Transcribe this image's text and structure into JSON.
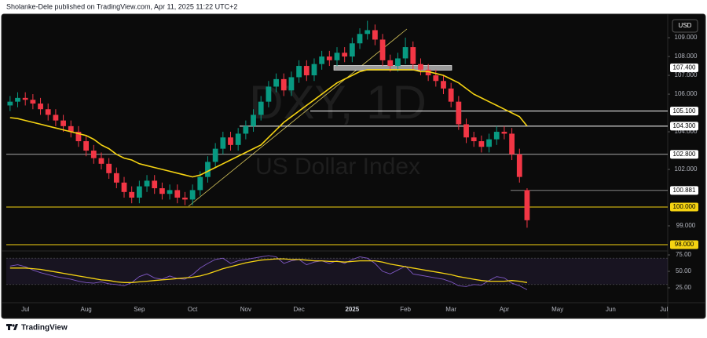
{
  "header": {
    "text": "Sholanke-Dele published on TradingView.com, Apr 11, 2025 11:22 UTC+2"
  },
  "chart_data": [
    {
      "type": "candlestick",
      "watermark_title": "DXY, 1D",
      "watermark_subtitle": "US Dollar Index",
      "currency": "USD",
      "categories": [
        null,
        null,
        "Jul",
        null,
        null,
        null,
        null,
        null,
        null,
        null,
        "Aug",
        null,
        null,
        null,
        null,
        null,
        null,
        "Sep",
        null,
        null,
        null,
        null,
        null,
        null,
        "Oct",
        null,
        null,
        null,
        null,
        null,
        null,
        "Nov",
        null,
        null,
        null,
        null,
        null,
        null,
        "Dec",
        null,
        null,
        null,
        null,
        null,
        null,
        "2025",
        null,
        null,
        null,
        null,
        null,
        null,
        "Feb",
        null,
        null,
        null,
        null,
        null,
        "Mar",
        null,
        null,
        null,
        null,
        null,
        null,
        "Apr",
        null,
        null,
        null,
        null,
        null,
        null,
        "May",
        null,
        null,
        null,
        null,
        null,
        null,
        "Jun",
        null,
        null,
        null,
        null,
        null,
        null,
        "Jul"
      ],
      "open": [
        105.4,
        105.6,
        105.8,
        105.7,
        105.5,
        105.2,
        104.9,
        104.6,
        104.3,
        104.0,
        103.5,
        103.0,
        102.6,
        102.3,
        101.8,
        101.3,
        100.8,
        100.5,
        101.1,
        101.4,
        101.0,
        100.7,
        100.9,
        100.5,
        100.4,
        100.9,
        101.6,
        102.4,
        103.1,
        103.7,
        103.3,
        103.9,
        104.3,
        104.9,
        105.6,
        106.4,
        106.8,
        106.2,
        106.9,
        107.5,
        107.0,
        107.6,
        108.0,
        107.8,
        108.2,
        108.0,
        108.7,
        109.2,
        109.4,
        108.9,
        107.8,
        107.5,
        107.9,
        108.5,
        107.6,
        107.3,
        107.0,
        106.7,
        106.3,
        105.6,
        104.4,
        103.7,
        103.5,
        103.2,
        103.6,
        104.0,
        103.9,
        102.8,
        100.9,
        null,
        null,
        null,
        null,
        null,
        null,
        null,
        null,
        null,
        null,
        null,
        null,
        null,
        null,
        null,
        null,
        null,
        null
      ],
      "high": [
        105.9,
        106.1,
        106.1,
        106.0,
        105.8,
        105.5,
        105.2,
        104.9,
        104.6,
        104.3,
        103.8,
        103.3,
        102.9,
        102.6,
        102.1,
        101.6,
        101.1,
        101.4,
        101.7,
        101.7,
        101.3,
        101.2,
        101.2,
        100.8,
        101.2,
        101.9,
        102.7,
        103.4,
        104.0,
        104.0,
        104.2,
        104.6,
        105.2,
        105.9,
        106.7,
        107.1,
        107.1,
        107.2,
        107.8,
        107.8,
        107.9,
        108.3,
        108.3,
        108.5,
        108.5,
        109.0,
        109.5,
        109.9,
        109.7,
        109.2,
        108.1,
        108.2,
        109.0,
        108.8,
        107.9,
        107.6,
        107.3,
        107.0,
        106.6,
        105.9,
        104.7,
        104.0,
        103.8,
        103.9,
        104.3,
        104.3,
        104.2,
        103.1,
        101.0,
        null,
        null,
        null,
        null,
        null,
        null,
        null,
        null,
        null,
        null,
        null,
        null,
        null,
        null,
        null,
        null,
        null,
        null
      ],
      "low": [
        105.1,
        105.3,
        105.4,
        105.2,
        104.9,
        104.6,
        104.3,
        104.0,
        103.7,
        103.2,
        102.7,
        102.3,
        102.0,
        101.5,
        101.0,
        100.5,
        100.2,
        100.2,
        100.8,
        100.7,
        100.4,
        100.4,
        100.2,
        100.1,
        100.1,
        100.6,
        101.3,
        102.1,
        102.8,
        103.0,
        103.0,
        103.6,
        104.0,
        104.6,
        105.3,
        106.1,
        105.9,
        105.9,
        106.6,
        106.7,
        106.7,
        107.3,
        107.5,
        107.5,
        107.7,
        107.7,
        108.4,
        108.9,
        108.6,
        107.5,
        107.2,
        107.2,
        107.6,
        107.3,
        107.0,
        106.7,
        106.4,
        106.0,
        105.3,
        104.1,
        103.4,
        103.2,
        102.9,
        102.9,
        103.3,
        103.6,
        102.5,
        101.3,
        98.9,
        null,
        null,
        null,
        null,
        null,
        null,
        null,
        null,
        null,
        null,
        null,
        null,
        null,
        null,
        null,
        null,
        null,
        null
      ],
      "close": [
        105.6,
        105.8,
        105.7,
        105.5,
        105.2,
        104.9,
        104.6,
        104.3,
        104.0,
        103.5,
        103.0,
        102.6,
        102.3,
        101.8,
        101.3,
        100.8,
        100.5,
        101.1,
        101.4,
        101.0,
        100.7,
        100.9,
        100.5,
        100.4,
        100.9,
        101.6,
        102.4,
        103.1,
        103.7,
        103.3,
        103.9,
        104.3,
        104.9,
        105.6,
        106.4,
        106.8,
        106.2,
        106.9,
        107.5,
        107.0,
        107.6,
        108.0,
        107.8,
        108.2,
        108.0,
        108.7,
        109.2,
        109.4,
        108.9,
        107.8,
        107.5,
        107.9,
        108.5,
        107.6,
        107.3,
        107.0,
        106.7,
        106.3,
        105.6,
        104.4,
        103.7,
        103.5,
        103.2,
        103.6,
        104.0,
        103.9,
        102.8,
        101.6,
        99.3,
        null,
        null,
        null,
        null,
        null,
        null,
        null,
        null,
        null,
        null,
        null,
        null,
        null,
        null,
        null,
        null,
        null,
        null
      ],
      "up_color": "#089981",
      "down_color": "#f23645",
      "ma": {
        "color": "#f5d312",
        "values": [
          104.75,
          104.7,
          104.6,
          104.5,
          104.4,
          104.3,
          104.2,
          104.1,
          104.0,
          103.9,
          103.8,
          103.6,
          103.3,
          103.1,
          102.8,
          102.6,
          102.5,
          102.3,
          102.2,
          102.1,
          102.0,
          101.9,
          101.8,
          101.7,
          101.6,
          101.7,
          101.9,
          102.1,
          102.3,
          102.5,
          102.7,
          102.9,
          103.1,
          103.3,
          103.7,
          104.1,
          104.5,
          104.8,
          105.1,
          105.4,
          105.7,
          106.0,
          106.3,
          106.6,
          106.8,
          107.0,
          107.2,
          107.3,
          107.3,
          107.3,
          107.3,
          107.3,
          107.3,
          107.3,
          107.2,
          107.2,
          107.1,
          107.0,
          106.8,
          106.6,
          106.3,
          106.0,
          105.8,
          105.6,
          105.4,
          105.2,
          105.0,
          104.8,
          104.3,
          null,
          null,
          null,
          null,
          null,
          null,
          null,
          null,
          null,
          null,
          null,
          null,
          null,
          null,
          null,
          null,
          null,
          null
        ]
      },
      "ylim": [
        97.75,
        110.17
      ],
      "yticks": [
        {
          "value": 99,
          "label": "99.000"
        },
        {
          "value": 102,
          "label": "102.000"
        },
        {
          "value": 104,
          "label": "104.000"
        },
        {
          "value": 106,
          "label": "106.000"
        },
        {
          "value": 107,
          "label": "107.000"
        },
        {
          "value": 108,
          "label": "108.000"
        },
        {
          "value": 109,
          "label": "109.000"
        }
      ],
      "levels": [
        {
          "value": 107.4,
          "label": "107.400",
          "color": "#ffffff"
        },
        {
          "value": 105.1,
          "label": "105.100",
          "color": "#ffffff"
        },
        {
          "value": 104.3,
          "label": "104.300",
          "color": "#ffffff"
        },
        {
          "value": 102.8,
          "label": "102.800",
          "color": "#ffffff"
        },
        {
          "value": 100.881,
          "label": "100.881",
          "color": "#ffffff"
        },
        {
          "value": 100,
          "label": "100.000",
          "color": "#f5d312"
        },
        {
          "value": 98,
          "label": "98.000",
          "color": "#f5d312"
        }
      ]
    },
    {
      "type": "line",
      "band": [
        30,
        70
      ],
      "band_color": "#7e57c2",
      "series": [
        {
          "color": "#7e57c2",
          "values": [
            58,
            60,
            57,
            52,
            48,
            45,
            42,
            40,
            38,
            35,
            33,
            32,
            34,
            31,
            30,
            28,
            33,
            42,
            46,
            40,
            38,
            43,
            39,
            38,
            45,
            55,
            62,
            68,
            70,
            62,
            66,
            68,
            70,
            72,
            74,
            72,
            62,
            66,
            68,
            60,
            64,
            66,
            62,
            66,
            62,
            68,
            72,
            70,
            62,
            50,
            46,
            52,
            58,
            46,
            44,
            42,
            40,
            38,
            34,
            28,
            27,
            30,
            29,
            36,
            42,
            40,
            32,
            28,
            22,
            null,
            null,
            null,
            null,
            null,
            null,
            null,
            null,
            null,
            null,
            null,
            null,
            null,
            null,
            null,
            null,
            null,
            null
          ]
        },
        {
          "color": "#f5d312",
          "values": [
            55,
            55,
            55,
            54,
            53,
            51,
            49,
            47,
            45,
            43,
            41,
            39,
            37,
            36,
            34,
            33,
            33,
            34,
            35,
            36,
            37,
            38,
            39,
            40,
            41,
            43,
            46,
            50,
            54,
            57,
            60,
            63,
            65,
            67,
            68,
            69,
            69,
            68,
            68,
            67,
            66,
            66,
            65,
            65,
            64,
            65,
            66,
            66,
            66,
            64,
            61,
            59,
            57,
            55,
            53,
            51,
            49,
            47,
            45,
            42,
            40,
            38,
            36,
            35,
            35,
            35,
            36,
            35,
            33,
            null,
            null,
            null,
            null,
            null,
            null,
            null,
            null,
            null,
            null,
            null,
            null,
            null,
            null,
            null,
            null,
            null,
            null
          ]
        }
      ],
      "ylim": [
        19,
        78.6
      ],
      "yticks": [
        {
          "value": 25,
          "label": "25.00"
        },
        {
          "value": 50,
          "label": "50.00"
        },
        {
          "value": 75,
          "label": "75.00"
        }
      ]
    }
  ],
  "footer": {
    "brand": "TradingView"
  }
}
